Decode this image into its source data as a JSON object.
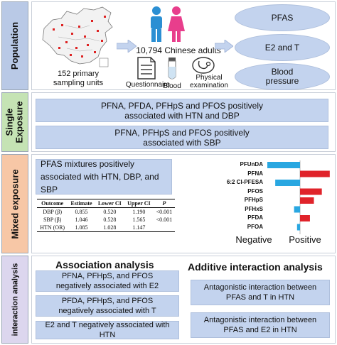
{
  "sections": {
    "population": "Population",
    "single": "Single Exposure",
    "mixed": "Mixed exposure",
    "interaction": "interaction analysis"
  },
  "colors": {
    "population": "#b9c9e6",
    "single": "#c5e3b4",
    "mixed": "#f7c7a6",
    "interaction": "#dcd6ee",
    "box": "#c3d3ee",
    "negative_bar": "#29a7e1",
    "positive_bar": "#e0232a"
  },
  "population": {
    "sampling": "152 primary sampling units",
    "adults": "10,794 Chinese adults",
    "questionnaire": "Questionnaire",
    "blood": "Blood",
    "physical": "Physical examination",
    "outcomes": [
      "PFAS",
      "E2 and T",
      "Blood pressure"
    ],
    "icons": [
      "china-map-icon",
      "people-icon",
      "questionnaire-icon",
      "blood-tube-icon",
      "stethoscope-icon"
    ]
  },
  "single": {
    "box1": "PFNA, PFDA, PFHpS and PFOS positively associated with HTN and DBP",
    "box2": "PFNA, PFHpS and PFOS positively associated with SBP"
  },
  "mixed": {
    "box": "PFAS mixtures positively associated with HTN, DBP, and SBP",
    "table": {
      "headers": [
        "Outcome",
        "Estimate",
        "Lower CI",
        "Upper CI",
        "P"
      ],
      "rows": [
        [
          "DBP (β)",
          "0.855",
          "0.520",
          "1.190",
          "<0.001"
        ],
        [
          "SBP (β)",
          "1.046",
          "0.528",
          "1.565",
          "<0.001"
        ],
        [
          "HTN (OR)",
          "1.085",
          "1.028",
          "1.147",
          ""
        ]
      ]
    },
    "chart_data": {
      "type": "bar",
      "orientation": "horizontal",
      "categories": [
        "PFUnDA",
        "PFNA",
        "6:2 Cl-PFESA",
        "PFOS",
        "PFHpS",
        "PFHxS",
        "PFDA",
        "PFOA"
      ],
      "values": [
        -0.33,
        0.3,
        -0.25,
        0.22,
        0.14,
        -0.06,
        0.1,
        -0.03
      ],
      "xlabel_negative": "Negative",
      "xlabel_positive": "Positive"
    }
  },
  "interaction": {
    "assoc_title": "Association analysis",
    "additive_title": "Additive interaction analysis",
    "assoc_boxes": [
      "PFNA, PFHpS, and PFOS negatively associated with E2",
      "PFDA, PFHpS, and PFOS negatively associated with T",
      "E2 and T negatively associated with HTN"
    ],
    "additive_boxes": [
      "Antagonistic interaction between PFAS and T in HTN",
      "Antagonistic interaction between PFAS and E2 in HTN"
    ]
  }
}
